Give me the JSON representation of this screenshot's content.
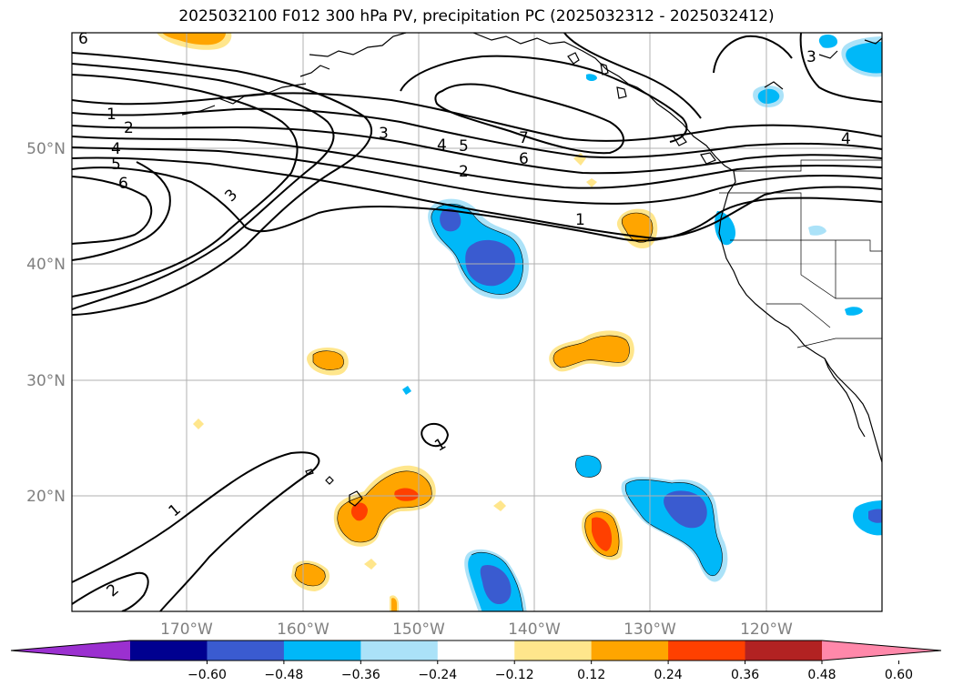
{
  "title": "2025032100 F012 300 hPa PV, precipitation PC (2025032312 - 2025032412)",
  "map": {
    "lon_labels": [
      "170°W",
      "160°W",
      "150°W",
      "140°W",
      "130°W",
      "120°W"
    ],
    "lat_labels": [
      "50°N",
      "40°N",
      "30°N",
      "20°N"
    ],
    "grid": true
  },
  "contour_labels": {
    "topleft": "6",
    "w1": "1",
    "w2": "2",
    "w4": "4",
    "w5": "5",
    "w6": "6",
    "c3a": "3",
    "c3b": "3",
    "c4": "4",
    "c5": "5",
    "c7": "7",
    "c6": "6",
    "c2": "2",
    "c1": "1",
    "ne3": "3",
    "ne4": "4",
    "mid1": "1",
    "sw1": "1",
    "sw2": "2"
  },
  "colorbar": {
    "ticks": [
      "−0.60",
      "−0.48",
      "−0.36",
      "−0.24",
      "−0.12",
      "0.12",
      "0.24",
      "0.36",
      "0.48",
      "0.60"
    ],
    "colors": [
      "#9b30d0",
      "#000090",
      "#3a5bd0",
      "#00b8f8",
      "#abe2f8",
      "#ffffff",
      "#ffe68c",
      "#ffa500",
      "#ff4000",
      "#b22222",
      "#ff88aa"
    ],
    "extend": "both"
  }
}
